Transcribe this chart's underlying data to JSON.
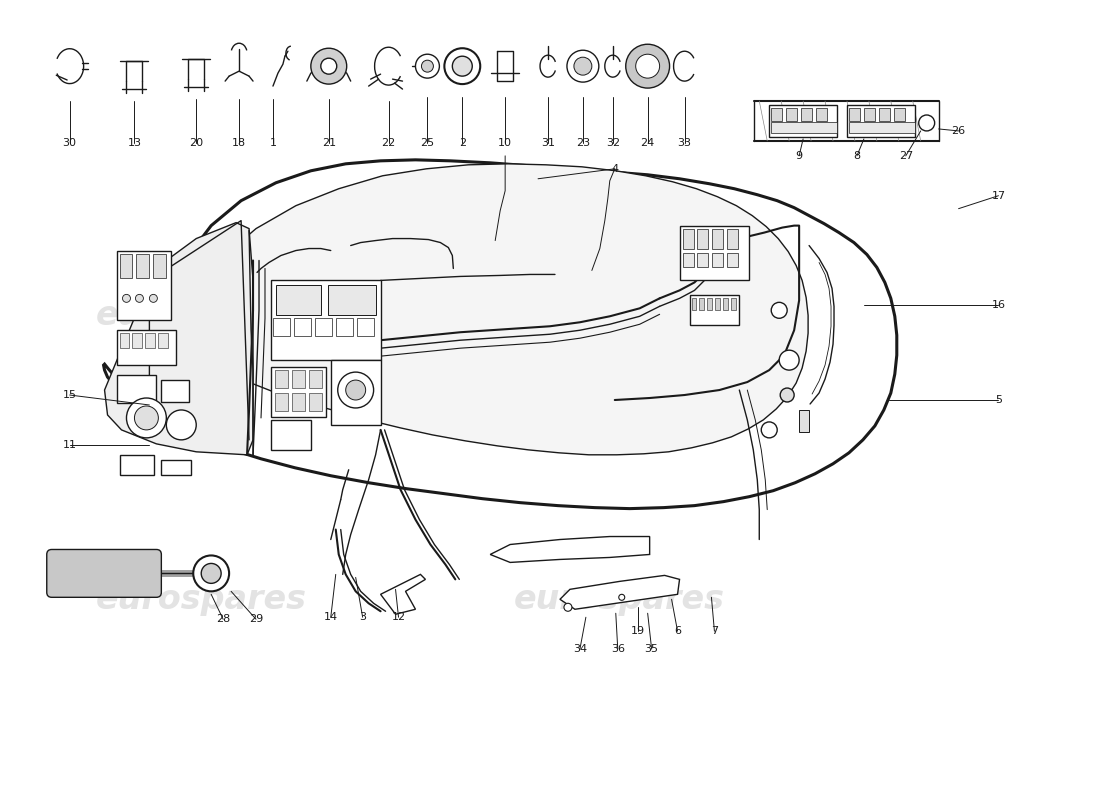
{
  "bg": "#ffffff",
  "lc": "#1a1a1a",
  "wm": "eurospares",
  "wm_color": "#cccccc",
  "figsize": [
    11.0,
    8.0
  ],
  "dpi": 100
}
